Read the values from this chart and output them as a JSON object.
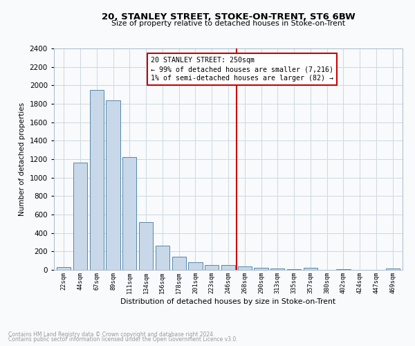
{
  "title": "20, STANLEY STREET, STOKE-ON-TRENT, ST6 6BW",
  "subtitle": "Size of property relative to detached houses in Stoke-on-Trent",
  "xlabel": "Distribution of detached houses by size in Stoke-on-Trent",
  "ylabel": "Number of detached properties",
  "categories": [
    "22sqm",
    "44sqm",
    "67sqm",
    "89sqm",
    "111sqm",
    "134sqm",
    "156sqm",
    "178sqm",
    "201sqm",
    "223sqm",
    "246sqm",
    "268sqm",
    "290sqm",
    "313sqm",
    "335sqm",
    "357sqm",
    "380sqm",
    "402sqm",
    "424sqm",
    "447sqm",
    "469sqm"
  ],
  "values": [
    30,
    1160,
    1950,
    1840,
    1220,
    520,
    265,
    145,
    80,
    50,
    50,
    40,
    20,
    15,
    8,
    20,
    3,
    5,
    2,
    2,
    15
  ],
  "bar_color": "#c8d8e8",
  "bar_edge_color": "#5588aa",
  "vline_index": 10.5,
  "vline_color": "#cc0000",
  "annotation_line1": "20 STANLEY STREET: 250sqm",
  "annotation_line2": "← 99% of detached houses are smaller (7,216)",
  "annotation_line3": "1% of semi-detached houses are larger (82) →",
  "annotation_box_color": "#cc0000",
  "ylim": [
    0,
    2400
  ],
  "yticks": [
    0,
    200,
    400,
    600,
    800,
    1000,
    1200,
    1400,
    1600,
    1800,
    2000,
    2200,
    2400
  ],
  "footnote1": "Contains HM Land Registry data © Crown copyright and database right 2024.",
  "footnote2": "Contains public sector information licensed under the Open Government Licence v3.0.",
  "grid_color": "#ccd8e0",
  "background_color": "#f8fafc"
}
